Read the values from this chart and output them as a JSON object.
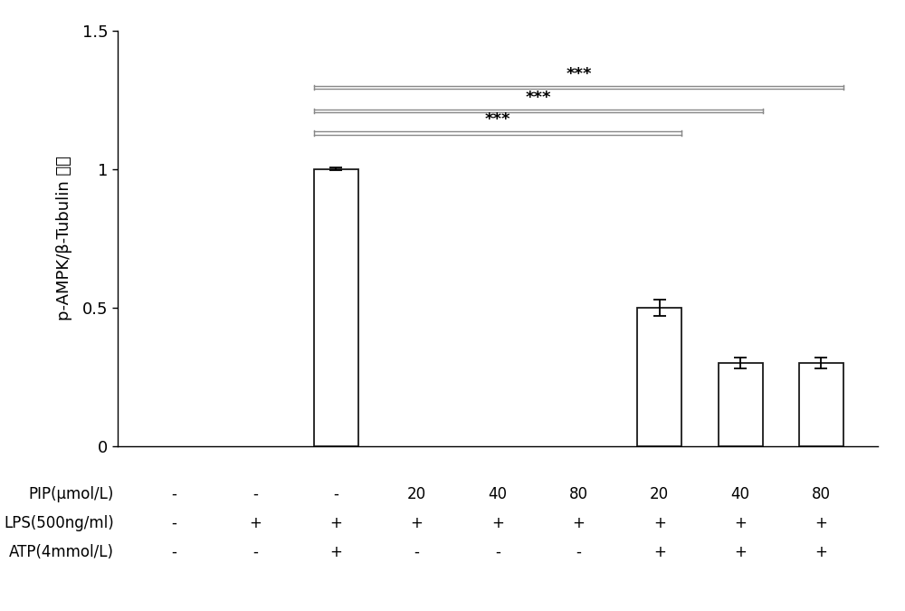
{
  "bar_positions": [
    1,
    2,
    3,
    4,
    5,
    6,
    7,
    8,
    9
  ],
  "bar_values": [
    0.0,
    0.0,
    1.0,
    0.0,
    0.0,
    0.0,
    0.5,
    0.3,
    0.3
  ],
  "bar_errors": [
    0.0,
    0.0,
    0.005,
    0.0,
    0.0,
    0.0,
    0.03,
    0.02,
    0.02
  ],
  "bar_color": "#ffffff",
  "bar_edgecolor": "#1a1a1a",
  "bar_linewidth": 1.3,
  "bar_width": 0.55,
  "ylim": [
    0,
    1.5
  ],
  "yticks": [
    0.0,
    0.5,
    1.0,
    1.5
  ],
  "ylabel": "p-AMPK/β-Tubulin 比値",
  "ylabel_fontsize": 13,
  "tick_fontsize": 13,
  "background_color": "#ffffff",
  "pip_label": "PIP(μmol/L)",
  "lps_label": "LPS(500ng/ml)",
  "atp_label": "ATP(4mmol/L)",
  "pip_values": [
    "-",
    "-",
    "-",
    "20",
    "40",
    "80",
    "20",
    "40",
    "80"
  ],
  "lps_values": [
    "-",
    "+",
    "+",
    "+",
    "+",
    "+",
    "+",
    "+",
    "+"
  ],
  "atp_values": [
    "-",
    "-",
    "+",
    "-",
    "-",
    "-",
    "+",
    "+",
    "+"
  ],
  "significance_lines": [
    {
      "x1_bar": 3,
      "x2_bar": 7,
      "y": 1.13,
      "label": "***"
    },
    {
      "x1_bar": 3,
      "x2_bar": 8,
      "y": 1.21,
      "label": "***"
    },
    {
      "x1_bar": 3,
      "x2_bar": 9,
      "y": 1.295,
      "label": "***"
    }
  ],
  "sig_line_color": "#888888",
  "sig_fontsize": 13,
  "label_row_fontsize": 12,
  "xlim": [
    0.3,
    9.7
  ]
}
